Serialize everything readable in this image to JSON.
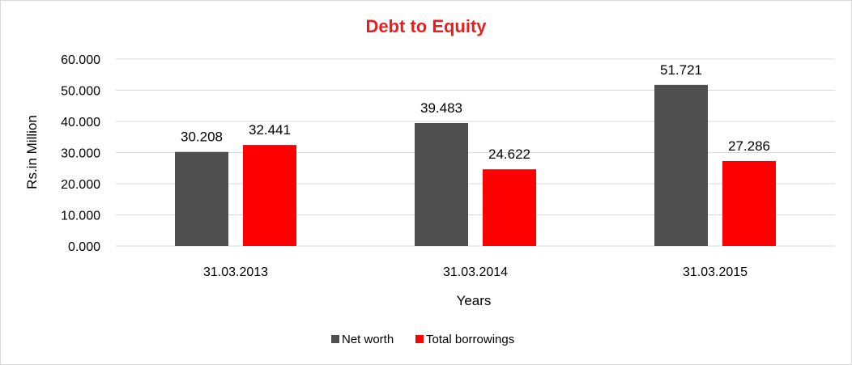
{
  "chart_data": {
    "type": "bar",
    "title": "Debt to Equity",
    "xlabel": "Years",
    "ylabel": "Rs.in Million",
    "categories": [
      "31.03.2013",
      "31.03.2014",
      "31.03.2015"
    ],
    "series": [
      {
        "name": "Net worth",
        "values": [
          30.208,
          39.483,
          51.721
        ],
        "value_labels": [
          "30.208",
          "39.483",
          "51.721"
        ],
        "color": "#4f4f4f"
      },
      {
        "name": "Total borrowings",
        "values": [
          32.441,
          24.622,
          27.286
        ],
        "value_labels": [
          "32.441",
          "24.622",
          "27.286"
        ],
        "color": "#ff0000"
      }
    ],
    "ylim": [
      0,
      60
    ],
    "yticks": [
      0,
      10,
      20,
      30,
      40,
      50,
      60
    ],
    "ytick_labels": [
      "0.000",
      "10.000",
      "20.000",
      "30.000",
      "40.000",
      "50.000",
      "60.000"
    ],
    "grid": true,
    "legend_position": "bottom",
    "title_color": "#ee1c1c",
    "gridline_color": "#d9d9d9"
  }
}
